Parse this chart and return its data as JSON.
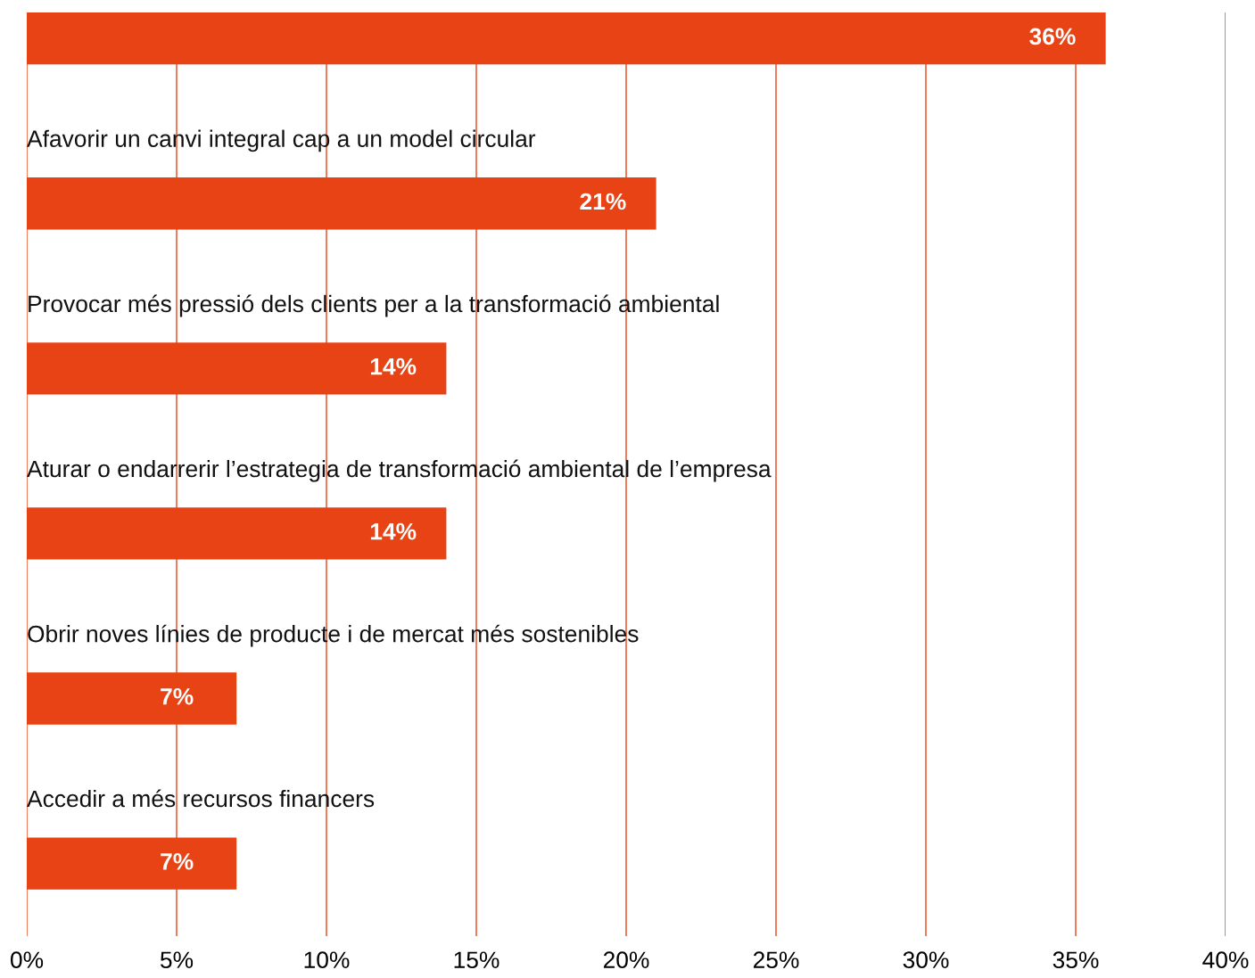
{
  "chart_data": {
    "type": "bar",
    "orientation": "horizontal",
    "categories": [
      null,
      "Afavorir un canvi integral cap a un model circular",
      "Provocar més pressió dels clients per a la transformació ambiental",
      "Aturar o endarrerir l’estrategia de transformació ambiental de l’empresa",
      "Obrir noves línies de producte i de mercat més sostenibles",
      "Accedir a més recursos financers"
    ],
    "values": [
      36,
      21,
      14,
      14,
      7,
      7
    ],
    "value_labels": [
      "36%",
      "21%",
      "14%",
      "14%",
      "7%",
      "7%"
    ],
    "color": "#e84314",
    "xlim": [
      0,
      40
    ],
    "xticks": [
      {
        "value": 0,
        "label": "0%"
      },
      {
        "value": 5,
        "label": "5%"
      },
      {
        "value": 10,
        "label": "10%"
      },
      {
        "value": 15,
        "label": "15%"
      },
      {
        "value": 20,
        "label": "20%"
      },
      {
        "value": 25,
        "label": "25%"
      },
      {
        "value": 30,
        "label": "30%"
      },
      {
        "value": 35,
        "label": "35%"
      },
      {
        "value": 40,
        "label": "40%"
      }
    ],
    "grid": "x",
    "tick_labels": "x",
    "legend": false
  }
}
